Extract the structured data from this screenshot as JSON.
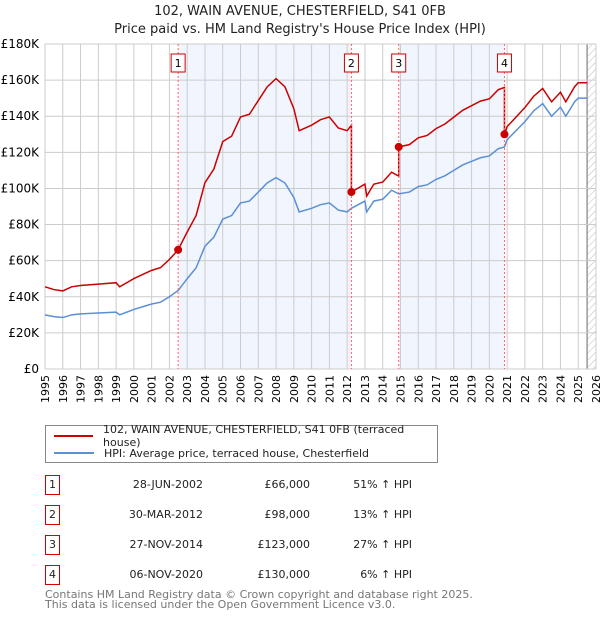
{
  "chart_data": {
    "type": "line",
    "title": "102, WAIN AVENUE, CHESTERFIELD, S41 0FB",
    "subtitle": "Price paid vs. HM Land Registry's House Price Index (HPI)",
    "xlim": [
      1995,
      2026
    ],
    "ylim": [
      0,
      180000
    ],
    "yticks": [
      "£0",
      "£20K",
      "£40K",
      "£60K",
      "£80K",
      "£100K",
      "£120K",
      "£140K",
      "£160K",
      "£180K"
    ],
    "xticks": [
      "1995",
      "1996",
      "1997",
      "1998",
      "1999",
      "2000",
      "2001",
      "2002",
      "2003",
      "2004",
      "2005",
      "2006",
      "2007",
      "2008",
      "2009",
      "2010",
      "2011",
      "2012",
      "2013",
      "2014",
      "2015",
      "2016",
      "2017",
      "2018",
      "2019",
      "2020",
      "2021",
      "2022",
      "2023",
      "2024",
      "2025",
      "2026"
    ],
    "hpi_series": {
      "name": "HPI: Average price, terraced house, Chesterfield",
      "color": "#5b8fd6",
      "points": [
        [
          1995,
          30
        ],
        [
          1995.5,
          29
        ],
        [
          1996,
          28.5
        ],
        [
          1996.5,
          30
        ],
        [
          1997,
          30.5
        ],
        [
          1998,
          31
        ],
        [
          1999,
          31.5
        ],
        [
          1999.2,
          30
        ],
        [
          2000,
          33
        ],
        [
          2001,
          36
        ],
        [
          2001.5,
          37
        ],
        [
          2002,
          40
        ],
        [
          2002.49,
          43.5
        ],
        [
          2003,
          50
        ],
        [
          2003.5,
          56
        ],
        [
          2004,
          68
        ],
        [
          2004.5,
          73
        ],
        [
          2005,
          83
        ],
        [
          2005.5,
          85
        ],
        [
          2006,
          92
        ],
        [
          2006.5,
          93
        ],
        [
          2007,
          98
        ],
        [
          2007.5,
          103
        ],
        [
          2008,
          106
        ],
        [
          2008.5,
          103
        ],
        [
          2009,
          95
        ],
        [
          2009.3,
          87
        ],
        [
          2010,
          89
        ],
        [
          2010.5,
          91
        ],
        [
          2011,
          92
        ],
        [
          2011.5,
          88
        ],
        [
          2012,
          87
        ],
        [
          2012.24,
          89
        ],
        [
          2013,
          93
        ],
        [
          2013.1,
          87
        ],
        [
          2013.5,
          93
        ],
        [
          2014,
          94
        ],
        [
          2014.5,
          99
        ],
        [
          2014.9,
          97
        ],
        [
          2015.5,
          98
        ],
        [
          2016,
          101
        ],
        [
          2016.5,
          102
        ],
        [
          2017,
          105
        ],
        [
          2017.5,
          107
        ],
        [
          2018,
          110
        ],
        [
          2018.5,
          113
        ],
        [
          2019,
          115
        ],
        [
          2019.5,
          117
        ],
        [
          2020,
          118
        ],
        [
          2020.5,
          122
        ],
        [
          2020.85,
          123
        ],
        [
          2021,
          127
        ],
        [
          2021.5,
          132
        ],
        [
          2022,
          137
        ],
        [
          2022.5,
          143
        ],
        [
          2023,
          147
        ],
        [
          2023.5,
          140
        ],
        [
          2024,
          145
        ],
        [
          2024.3,
          140
        ],
        [
          2024.8,
          148
        ],
        [
          2025,
          150
        ],
        [
          2025.5,
          150
        ]
      ]
    },
    "property_series": {
      "name": "102, WAIN AVENUE, CHESTERFIELD, S41 0FB (terraced house)",
      "color": "#cc0000"
    },
    "sales": [
      {
        "label": "1",
        "x": 2002.49,
        "date": "28-JUN-2002",
        "price": 66000,
        "price_label": "£66,000",
        "hpi": "51% ↑ HPI"
      },
      {
        "label": "2",
        "x": 2012.24,
        "date": "30-MAR-2012",
        "price": 98000,
        "price_label": "£98,000",
        "hpi": "13% ↑ HPI"
      },
      {
        "label": "3",
        "x": 2014.9,
        "date": "27-NOV-2014",
        "price": 123000,
        "price_label": "£123,000",
        "hpi": "27% ↑ HPI"
      },
      {
        "label": "4",
        "x": 2020.85,
        "date": "06-NOV-2020",
        "price": 130000,
        "price_label": "£130,000",
        "hpi": "6% ↑ HPI"
      }
    ],
    "legend_position": "below",
    "grid": true
  },
  "footer": {
    "line1": "Contains HM Land Registry data © Crown copyright and database right 2025.",
    "line2": "This data is licensed under the Open Government Licence v3.0."
  }
}
